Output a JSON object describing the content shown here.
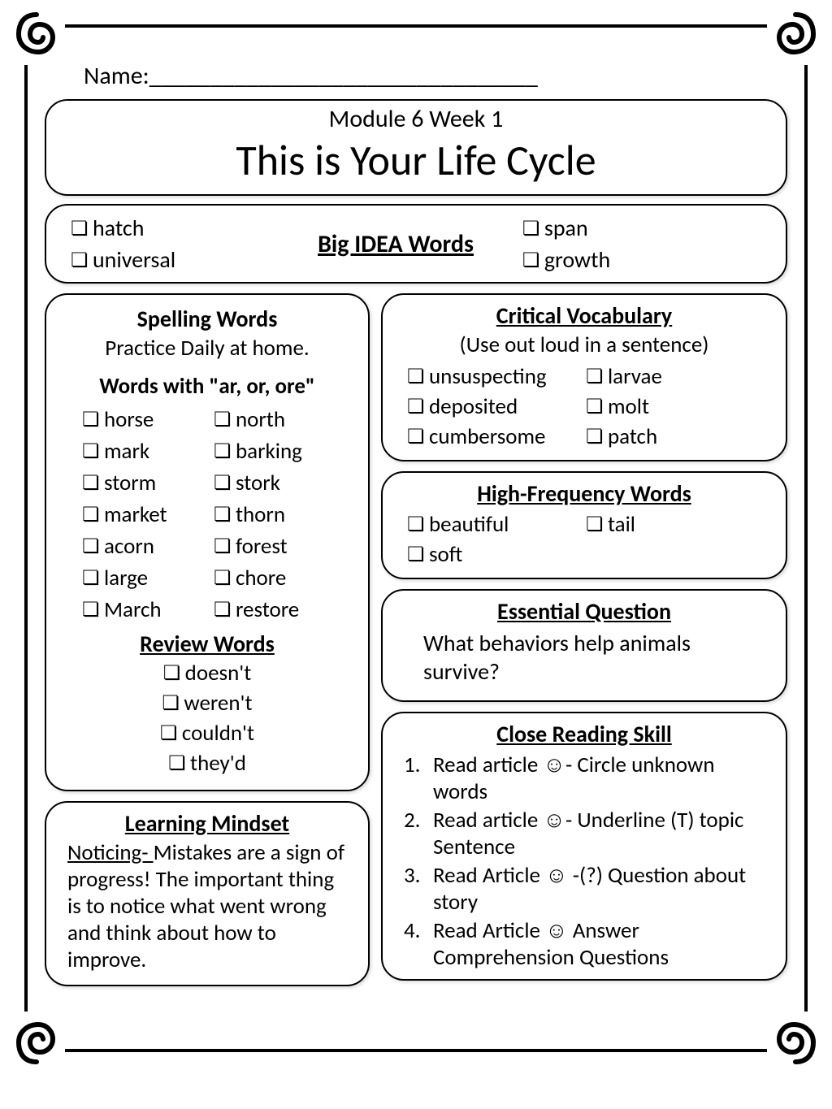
{
  "name_label": "Name:________________________________",
  "header": {
    "module": "Module 6 Week 1",
    "title": "This is Your Life Cycle"
  },
  "big_idea": {
    "heading": "Big IDEA Words",
    "left": [
      "hatch",
      "universal"
    ],
    "right": [
      "span",
      "growth"
    ]
  },
  "spelling": {
    "heading": "Spelling Words",
    "subtext": "Practice Daily at home.",
    "pattern": "Words with \"ar, or, ore\"",
    "col1": [
      "horse",
      "mark",
      "storm",
      "market",
      "acorn",
      "large",
      "March"
    ],
    "col2": [
      "north",
      "barking",
      "stork",
      "thorn",
      "forest",
      "chore",
      "restore"
    ],
    "review_heading": "Review Words",
    "review": [
      "doesn't",
      "weren't",
      "couldn't",
      "they'd"
    ]
  },
  "mindset": {
    "heading": "Learning Mindset",
    "label": "Noticing- ",
    "text": "Mistakes are a sign of progress! The important thing is to notice what went wrong and think about how to improve."
  },
  "vocab": {
    "heading": "Critical Vocabulary",
    "subtext": "(Use out loud in a sentence)",
    "words": [
      "unsuspecting",
      "larvae",
      "deposited",
      "molt",
      "cumbersome",
      "patch"
    ]
  },
  "hf": {
    "heading": "High-Frequency Words",
    "words": [
      "beautiful",
      "tail",
      "soft"
    ]
  },
  "essential": {
    "heading": "Essential Question",
    "text": "What behaviors help animals survive?"
  },
  "reading": {
    "heading": "Close Reading Skill",
    "steps": [
      "Read article ☺- Circle unknown words",
      "Read article ☺-  Underline (T) topic Sentence",
      "Read Article ☺ -(?) Question about story",
      "Read Article ☺ Answer Comprehension Questions"
    ]
  },
  "colors": {
    "border": "#000000",
    "background": "#ffffff"
  }
}
